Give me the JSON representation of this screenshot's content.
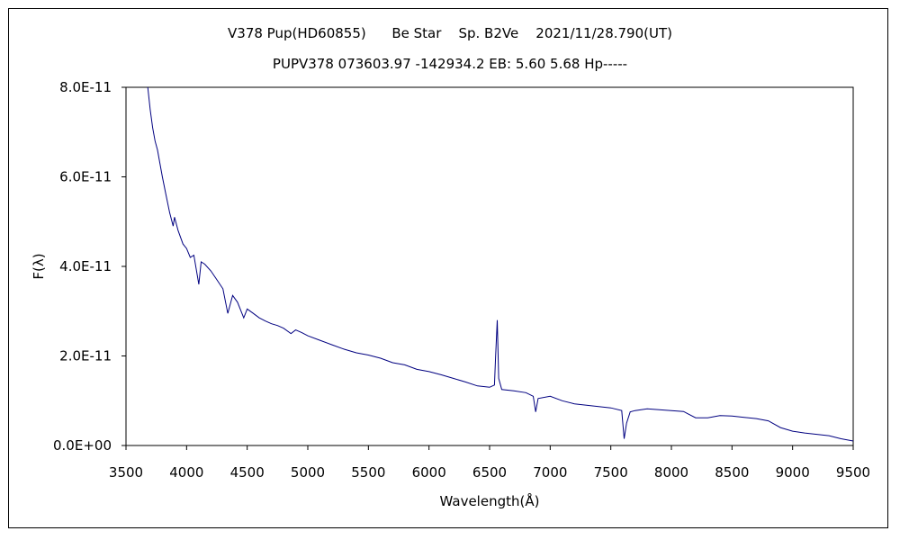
{
  "chart_data": {
    "type": "line",
    "title": "V378 Pup(HD60855)      Be Star    Sp. B2Ve    2021/11/28.790(UT)",
    "subtitle": "PUPV378 073603.97 -142934.2 EB: 5.60 5.68 Hp-----",
    "xlabel": "Wavelength(Å)",
    "ylabel": "F(λ)",
    "xlim": [
      3500,
      9500
    ],
    "ylim": [
      0,
      8e-11
    ],
    "x_ticks": [
      3500,
      4000,
      4500,
      5000,
      5500,
      6000,
      6500,
      7000,
      7500,
      8000,
      8500,
      9000,
      9500
    ],
    "y_ticks": [
      0,
      2e-11,
      4e-11,
      6e-11,
      8e-11
    ],
    "x_tick_labels": [
      "3500",
      "4000",
      "4500",
      "5000",
      "5500",
      "6000",
      "6500",
      "7000",
      "7500",
      "8000",
      "8500",
      "9000",
      "9500"
    ],
    "y_tick_labels": [
      "0.0E+00",
      "2.0E-11",
      "4.0E-11",
      "6.0E-11",
      "8.0E-11"
    ],
    "grid": false,
    "legend": "none",
    "line_color": "#000080",
    "series": [
      {
        "x": [
          3680,
          3700,
          3720,
          3740,
          3760,
          3780,
          3800,
          3830,
          3860,
          3889,
          3900,
          3930,
          3970,
          4000,
          4030,
          4060,
          4101,
          4120,
          4150,
          4200,
          4250,
          4300,
          4340,
          4380,
          4420,
          4471,
          4500,
          4550,
          4600,
          4650,
          4700,
          4750,
          4800,
          4861,
          4900,
          4950,
          5000,
          5100,
          5200,
          5300,
          5400,
          5500,
          5600,
          5700,
          5800,
          5900,
          6000,
          6100,
          6200,
          6300,
          6400,
          6500,
          6540,
          6550,
          6563,
          6575,
          6600,
          6700,
          6800,
          6860,
          6880,
          6900,
          7000,
          7100,
          7200,
          7300,
          7400,
          7500,
          7590,
          7610,
          7630,
          7660,
          7700,
          7800,
          7900,
          8000,
          8100,
          8200,
          8300,
          8400,
          8500,
          8600,
          8700,
          8800,
          8900,
          9000,
          9100,
          9200,
          9300,
          9400,
          9500
        ],
        "y": [
          8e-11,
          7.5e-11,
          7.1e-11,
          6.8e-11,
          6.6e-11,
          6.3e-11,
          6e-11,
          5.6e-11,
          5.2e-11,
          4.9e-11,
          5.1e-11,
          4.8e-11,
          4.5e-11,
          4.4e-11,
          4.2e-11,
          4.25e-11,
          3.6e-11,
          4.1e-11,
          4.05e-11,
          3.9e-11,
          3.7e-11,
          3.5e-11,
          2.95e-11,
          3.35e-11,
          3.2e-11,
          2.85e-11,
          3.05e-11,
          2.95e-11,
          2.85e-11,
          2.78e-11,
          2.72e-11,
          2.68e-11,
          2.62e-11,
          2.5e-11,
          2.58e-11,
          2.52e-11,
          2.45e-11,
          2.35e-11,
          2.25e-11,
          2.15e-11,
          2.07e-11,
          2.02e-11,
          1.95e-11,
          1.85e-11,
          1.8e-11,
          1.7e-11,
          1.65e-11,
          1.58e-11,
          1.5e-11,
          1.42e-11,
          1.33e-11,
          1.3e-11,
          1.35e-11,
          2e-11,
          2.8e-11,
          1.5e-11,
          1.25e-11,
          1.22e-11,
          1.18e-11,
          1.1e-11,
          7.5e-12,
          1.05e-11,
          1.1e-11,
          1e-11,
          9.3e-12,
          9e-12,
          8.7e-12,
          8.4e-12,
          7.8e-12,
          1.5e-12,
          5e-12,
          7.5e-12,
          7.8e-12,
          8.2e-12,
          8e-12,
          7.8e-12,
          7.6e-12,
          6.2e-12,
          6.2e-12,
          6.7e-12,
          6.6e-12,
          6.3e-12,
          6e-12,
          5.5e-12,
          4e-12,
          3.2e-12,
          2.8e-12,
          2.5e-12,
          2.2e-12,
          1.5e-12,
          1e-12
        ]
      }
    ]
  }
}
